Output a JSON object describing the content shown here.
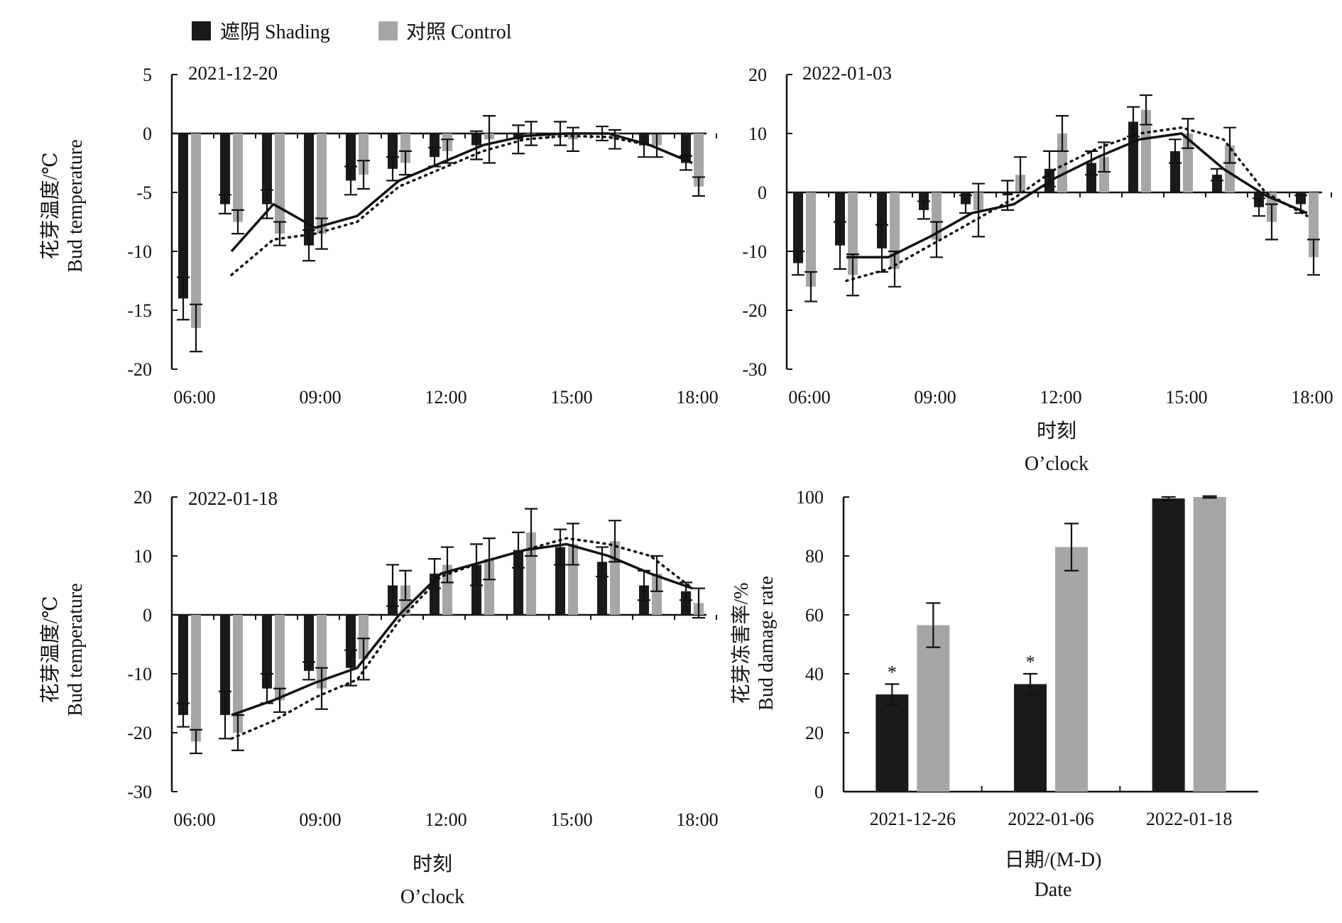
{
  "legend": [
    {
      "label": "遮阴 Shading",
      "color": "#1a1a1a"
    },
    {
      "label": "对照 Control",
      "color": "#a6a6a6"
    }
  ],
  "axis_labels": {
    "y_temp_cn": "花芽温度/℃",
    "y_temp_en": "Bud temperature",
    "x_time_cn": "时刻",
    "x_time_en": "O’clock",
    "y_damage_cn": "花芽冻害率/%",
    "y_damage_en": "Bud damage rate",
    "x_date_cn": "日期/(M-D)",
    "x_date_en": "Date"
  },
  "chart_data": [
    {
      "type": "bar",
      "panel": "a",
      "title": "2021-12-20",
      "x_ticks": [
        "06:00",
        "09:00",
        "12:00",
        "15:00",
        "18:00"
      ],
      "categories": [
        "06:00",
        "07:00",
        "08:00",
        "09:00",
        "10:00",
        "11:00",
        "12:00",
        "13:00",
        "14:00",
        "15:00",
        "16:00",
        "17:00",
        "18:00"
      ],
      "ylim": [
        -20,
        5
      ],
      "yticks": [
        5,
        0,
        -5,
        -10,
        -15,
        -20
      ],
      "series": [
        {
          "name": "遮阴 Shading",
          "values": [
            -14.0,
            -6.0,
            -6.0,
            -9.5,
            -4.0,
            -3.0,
            -2.0,
            -1.0,
            -0.5,
            0.0,
            0.0,
            -1.0,
            -2.5
          ],
          "errors": [
            1.8,
            0.8,
            1.2,
            1.3,
            1.2,
            1.0,
            0.8,
            1.2,
            1.2,
            1.0,
            0.6,
            1.0,
            0.6
          ]
        },
        {
          "name": "对照 Control",
          "values": [
            -16.5,
            -7.5,
            -8.5,
            -8.5,
            -3.5,
            -2.5,
            -1.5,
            -0.5,
            0.0,
            -0.5,
            -0.5,
            -1.0,
            -4.5
          ],
          "errors": [
            2.0,
            1.0,
            1.0,
            1.3,
            1.2,
            1.0,
            1.0,
            2.0,
            1.0,
            1.0,
            0.8,
            1.0,
            0.8
          ]
        }
      ],
      "trend_shading": [
        -10.0,
        -6.0,
        -8.0,
        -7.0,
        -4.0,
        -2.5,
        -1.0,
        -0.2,
        0.0,
        0.0,
        -1.0,
        -2.5
      ],
      "trend_control": [
        -12.0,
        -9.0,
        -8.5,
        -7.5,
        -4.5,
        -3.0,
        -1.5,
        -0.5,
        -0.2,
        -0.3,
        -1.0,
        -2.5
      ]
    },
    {
      "type": "bar",
      "panel": "b",
      "title": "2022-01-03",
      "x_ticks": [
        "06:00",
        "09:00",
        "12:00",
        "15:00",
        "18:00"
      ],
      "categories": [
        "06:00",
        "07:00",
        "08:00",
        "09:00",
        "10:00",
        "11:00",
        "12:00",
        "13:00",
        "14:00",
        "15:00",
        "16:00",
        "17:00",
        "18:00"
      ],
      "ylim": [
        -30,
        20
      ],
      "yticks": [
        20,
        10,
        0,
        -10,
        -20,
        -30
      ],
      "series": [
        {
          "name": "遮阴 Shading",
          "values": [
            -12.0,
            -9.0,
            -9.5,
            -3.0,
            -2.0,
            -0.5,
            4.0,
            5.0,
            12.0,
            7.0,
            3.0,
            -2.5,
            -2.0
          ],
          "errors": [
            2.0,
            4.0,
            4.0,
            1.5,
            1.5,
            2.5,
            3.0,
            2.0,
            2.5,
            2.0,
            1.0,
            1.5,
            1.5
          ]
        },
        {
          "name": "对照 Control",
          "values": [
            -16.0,
            -14.0,
            -13.0,
            -8.0,
            -3.0,
            3.0,
            10.0,
            6.0,
            14.0,
            10.0,
            8.0,
            -5.0,
            -11.0
          ],
          "errors": [
            2.5,
            3.5,
            3.0,
            3.0,
            4.5,
            3.0,
            3.0,
            2.5,
            2.5,
            2.5,
            3.0,
            3.0,
            3.0
          ]
        }
      ],
      "trend_shading": [
        -11.0,
        -11.0,
        -7.5,
        -3.5,
        -2.0,
        2.5,
        6.0,
        9.0,
        10.0,
        4.0,
        -0.5,
        -3.5
      ],
      "trend_control": [
        -15.0,
        -13.0,
        -9.0,
        -5.0,
        -1.0,
        4.0,
        7.5,
        10.0,
        11.0,
        9.0,
        0.0,
        -4.0
      ]
    },
    {
      "type": "bar",
      "panel": "c",
      "title": "2022-01-18",
      "x_ticks": [
        "06:00",
        "09:00",
        "12:00",
        "15:00",
        "18:00"
      ],
      "categories": [
        "06:00",
        "07:00",
        "08:00",
        "09:00",
        "10:00",
        "11:00",
        "12:00",
        "13:00",
        "14:00",
        "15:00",
        "16:00",
        "17:00",
        "18:00"
      ],
      "ylim": [
        -30,
        20
      ],
      "yticks": [
        20,
        10,
        0,
        -10,
        -20,
        -30
      ],
      "series": [
        {
          "name": "遮阴 Shading",
          "values": [
            -17.0,
            -17.0,
            -12.5,
            -9.5,
            -9.0,
            5.0,
            7.0,
            8.5,
            11.0,
            11.5,
            9.0,
            5.0,
            4.0
          ],
          "errors": [
            2.0,
            4.0,
            2.5,
            1.5,
            3.0,
            3.5,
            2.5,
            3.5,
            3.0,
            3.0,
            2.5,
            2.5,
            1.5
          ]
        },
        {
          "name": "对照 Control",
          "values": [
            -21.5,
            -20.0,
            -14.5,
            -12.5,
            -7.5,
            5.0,
            8.5,
            9.5,
            14.0,
            12.0,
            12.5,
            7.0,
            2.0
          ],
          "errors": [
            2.0,
            3.0,
            2.0,
            3.5,
            3.5,
            2.5,
            3.0,
            3.5,
            4.0,
            3.5,
            3.5,
            3.0,
            2.5
          ]
        }
      ],
      "trend_shading": [
        -17.0,
        -14.5,
        -11.5,
        -9.0,
        0.0,
        7.0,
        9.0,
        11.0,
        12.0,
        10.0,
        7.0,
        4.5
      ],
      "trend_control": [
        -21.0,
        -18.0,
        -14.0,
        -11.0,
        -1.0,
        6.5,
        9.0,
        11.0,
        13.0,
        12.0,
        10.0,
        4.5
      ]
    },
    {
      "type": "bar",
      "panel": "d",
      "categories": [
        "2021-12-26",
        "2022-01-06",
        "2022-01-18"
      ],
      "ylim": [
        0,
        100
      ],
      "yticks": [
        100,
        80,
        60,
        40,
        20,
        0
      ],
      "series": [
        {
          "name": "遮阴 Shading",
          "values": [
            33.0,
            36.5,
            99.5
          ],
          "errors": [
            3.5,
            3.5,
            0.5
          ]
        },
        {
          "name": "对照 Control",
          "values": [
            56.5,
            83.0,
            100.0
          ],
          "errors": [
            7.5,
            8.0,
            0.3
          ]
        }
      ],
      "annotations": [
        "*",
        "*",
        ""
      ]
    }
  ]
}
